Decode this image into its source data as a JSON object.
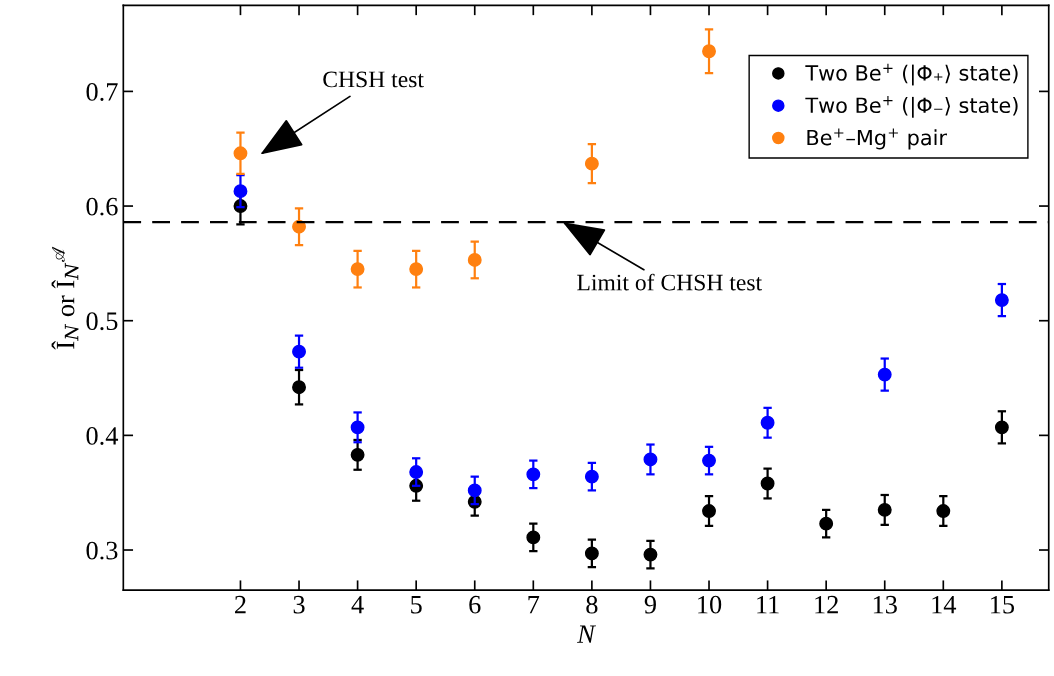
{
  "chart_data": {
    "type": "scatter",
    "xlabel": "N",
    "ylabel": "Î$_{N}$ or Î$_{N}$$^{𝒜}$",
    "x": [
      2,
      3,
      4,
      5,
      6,
      7,
      8,
      9,
      10,
      11,
      12,
      13,
      14,
      15
    ],
    "series": [
      {
        "name": "Two Be$^{+}$ (|Φ₊⟩ state)",
        "color": "#000000",
        "values": [
          0.6,
          0.442,
          0.383,
          0.356,
          0.342,
          0.311,
          0.297,
          0.296,
          0.334,
          0.358,
          0.323,
          0.335,
          0.334,
          0.407
        ],
        "errors": [
          0.016,
          0.015,
          0.013,
          0.013,
          0.012,
          0.012,
          0.012,
          0.012,
          0.013,
          0.013,
          0.012,
          0.013,
          0.013,
          0.014
        ]
      },
      {
        "name": "Two Be$^{+}$ (|Φ₋⟩ state)",
        "color": "#0000ff",
        "values": [
          0.613,
          0.473,
          0.407,
          0.368,
          0.352,
          0.366,
          0.364,
          0.379,
          0.378,
          0.411,
          null,
          0.453,
          null,
          0.518
        ],
        "errors": [
          0.014,
          0.014,
          0.013,
          0.012,
          0.012,
          0.012,
          0.012,
          0.013,
          0.012,
          0.013,
          null,
          0.014,
          null,
          0.014
        ]
      },
      {
        "name": "Be$^{+}$–Mg$^{+}$ pair",
        "color": "#ff8010",
        "values": [
          0.646,
          0.582,
          0.545,
          0.545,
          0.553,
          null,
          0.637,
          null,
          0.735,
          null,
          null,
          null,
          null,
          null
        ],
        "errors": [
          0.018,
          0.016,
          0.016,
          0.016,
          0.016,
          null,
          0.017,
          null,
          0.019,
          null,
          null,
          null,
          null,
          null
        ]
      }
    ],
    "ref_lines": [
      {
        "axis": "y",
        "value": 0.586,
        "color": "#000000",
        "line_style": "dashed"
      }
    ],
    "annotations": [
      "CHSH test",
      {
        "text": "Limit of CHSH test",
        "x": 7.5,
        "y": 0.586
      }
    ],
    "xlim": [
      0,
      15.8
    ],
    "xticks": [
      2,
      3,
      4,
      5,
      6,
      7,
      8,
      9,
      10,
      11,
      12,
      13,
      14,
      15
    ],
    "ylim": [
      0.265,
      0.775
    ],
    "yticks": [
      0.3,
      0.4,
      0.5,
      0.6,
      0.7
    ],
    "marker": "circle",
    "grid": false,
    "legend": "top right"
  }
}
